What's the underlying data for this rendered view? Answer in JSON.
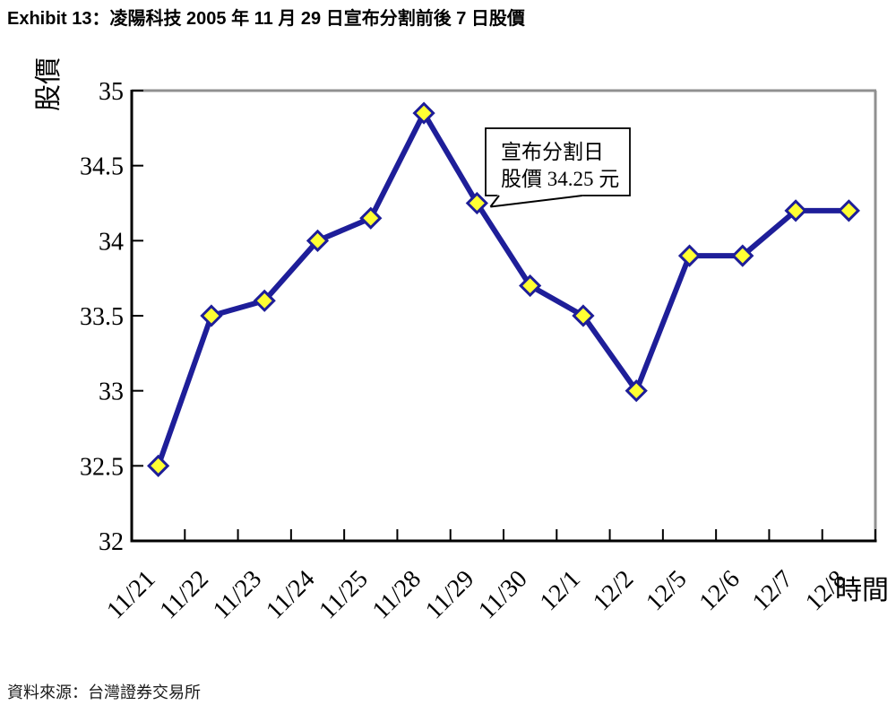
{
  "header": {
    "title": "Exhibit 13：凌陽科技 2005 年 11 月 29 日宣布分割前後 7 日股價"
  },
  "footer": {
    "source": "資料來源：台灣證券交易所"
  },
  "chart_data": {
    "type": "line",
    "title": "凌陽科技 2005 年 11 月 29 日宣布分割前後 7 日股價",
    "categories": [
      "11/21",
      "11/22",
      "11/23",
      "11/24",
      "11/25",
      "11/28",
      "11/29",
      "11/30",
      "12/1",
      "12/2",
      "12/5",
      "12/6",
      "12/7",
      "12/8"
    ],
    "series": [
      {
        "name": "股價",
        "values": [
          32.5,
          33.5,
          33.6,
          34.0,
          34.15,
          34.85,
          34.25,
          33.7,
          33.5,
          33.0,
          33.9,
          33.9,
          34.2,
          34.2
        ]
      }
    ],
    "xlabel": "時間",
    "ylabel": "股價",
    "ylim": [
      32,
      35
    ],
    "yticks": [
      32,
      32.5,
      33,
      33.5,
      34,
      34.5,
      35
    ],
    "grid": false,
    "legend_position": "none",
    "annotation": {
      "lines": [
        "宣布分割日",
        "股價 34.25 元"
      ],
      "target_category": "11/29",
      "target_index": 6
    },
    "colors": {
      "line": "#1E1E99",
      "marker_fill": "#FFFF33",
      "marker_stroke": "#1E1E99",
      "axis": "#000000",
      "plot_border": "#909090",
      "annotation_border": "#000000",
      "background": "#FFFFFF"
    }
  }
}
